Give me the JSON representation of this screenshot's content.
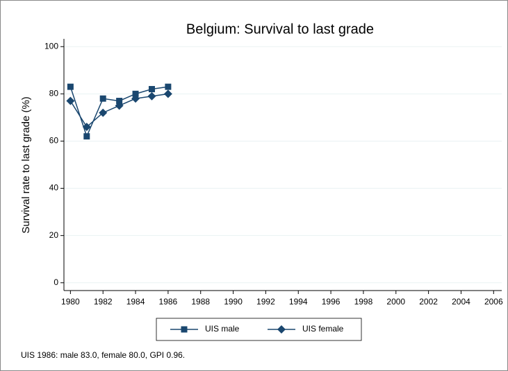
{
  "chart_data": {
    "type": "line",
    "title": "Belgium: Survival to last grade",
    "y_label": "Survival rate to last grade (%)",
    "note": "UIS 1986: male 83.0, female 80.0, GPI 0.96.",
    "x": [
      1980,
      1981,
      1982,
      1983,
      1984,
      1985,
      1986
    ],
    "series": [
      {
        "name": "UIS male",
        "color": "#1a476f",
        "marker": "square",
        "values": [
          83,
          62,
          78,
          77,
          80,
          82,
          83
        ]
      },
      {
        "name": "UIS female",
        "color": "#1a476f",
        "marker": "diamond",
        "values": [
          77,
          66,
          72,
          75,
          78,
          79,
          80
        ]
      }
    ],
    "xlim": [
      1979.6,
      2006.5
    ],
    "xticks": [
      1980,
      1982,
      1984,
      1986,
      1988,
      1990,
      1992,
      1994,
      1996,
      1998,
      2000,
      2002,
      2004,
      2006
    ],
    "ylim": [
      -3.3,
      103.3
    ],
    "yticks": [
      0,
      20,
      40,
      60,
      80,
      100
    ],
    "grid": true,
    "legend": "bottom"
  }
}
